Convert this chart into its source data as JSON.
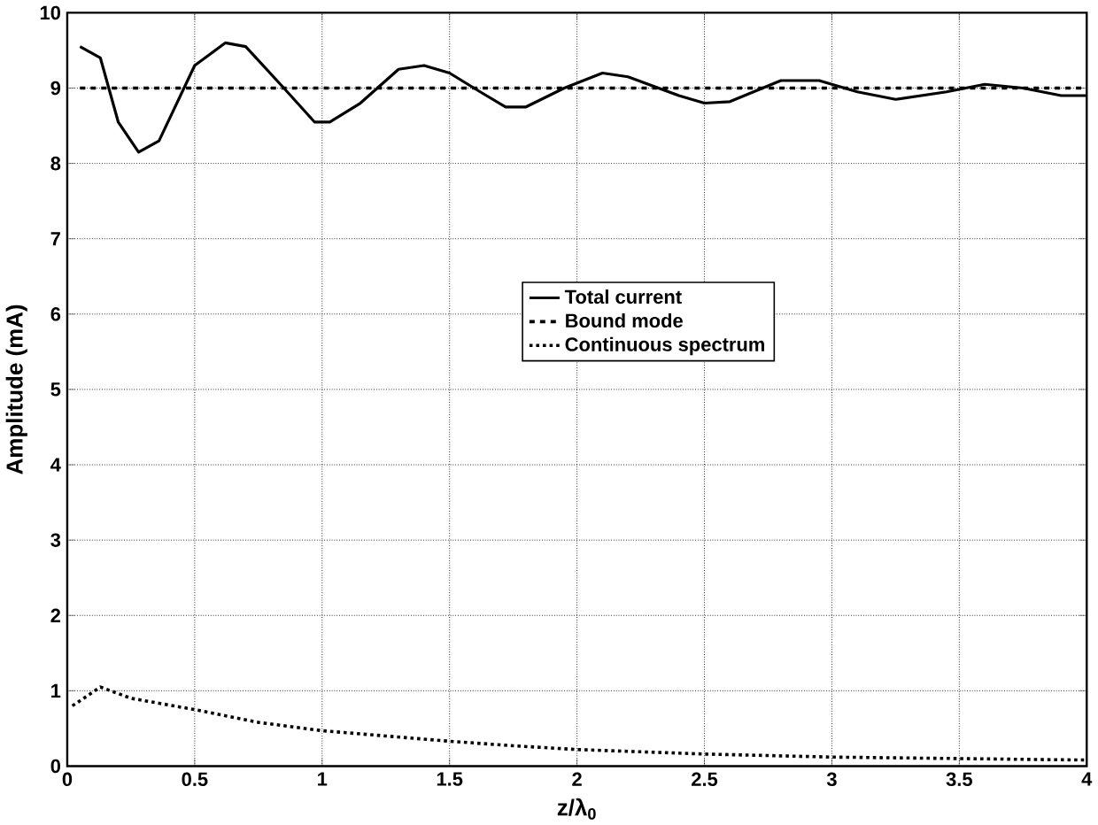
{
  "chart_data": {
    "type": "line",
    "xlabel": "z/λ$_{0}$",
    "ylabel": "Amplitude (mA)",
    "xlim": [
      0,
      4
    ],
    "ylim": [
      0,
      10
    ],
    "xticks": [
      0,
      0.5,
      1,
      1.5,
      2,
      2.5,
      3,
      3.5,
      4
    ],
    "yticks": [
      0,
      1,
      2,
      3,
      4,
      5,
      6,
      7,
      8,
      9,
      10
    ],
    "grid": true,
    "legend": "center",
    "marker": "none",
    "series": [
      {
        "name": "Total current",
        "color": "#000000",
        "line_style": "solid",
        "x": [
          0.05,
          0.13,
          0.2,
          0.28,
          0.36,
          0.5,
          0.62,
          0.7,
          0.85,
          0.97,
          1.03,
          1.15,
          1.3,
          1.4,
          1.5,
          1.62,
          1.72,
          1.8,
          1.95,
          2.1,
          2.2,
          2.4,
          2.5,
          2.6,
          2.8,
          2.95,
          3.1,
          3.25,
          3.45,
          3.6,
          3.75,
          3.9,
          4
        ],
        "values": [
          9.55,
          9.4,
          8.55,
          8.15,
          8.3,
          9.3,
          9.6,
          9.55,
          9.0,
          8.55,
          8.55,
          8.8,
          9.25,
          9.3,
          9.2,
          8.95,
          8.75,
          8.75,
          9.0,
          9.2,
          9.15,
          8.9,
          8.8,
          8.82,
          9.1,
          9.1,
          8.95,
          8.85,
          8.95,
          9.05,
          9.0,
          8.9,
          8.9
        ]
      },
      {
        "name": "Bound mode",
        "color": "#000000",
        "line_style": "dashed",
        "x": [
          0.05,
          4
        ],
        "values": [
          9,
          9
        ]
      },
      {
        "name": "Continuous spectrum",
        "color": "#000000",
        "line_style": "dotted",
        "x": [
          0.02,
          0.13,
          0.25,
          0.5,
          0.75,
          1,
          1.25,
          1.5,
          1.75,
          2,
          2.5,
          3,
          3.5,
          4
        ],
        "values": [
          0.8,
          1.05,
          0.9,
          0.75,
          0.58,
          0.47,
          0.4,
          0.33,
          0.27,
          0.22,
          0.16,
          0.12,
          0.1,
          0.08
        ]
      }
    ]
  }
}
